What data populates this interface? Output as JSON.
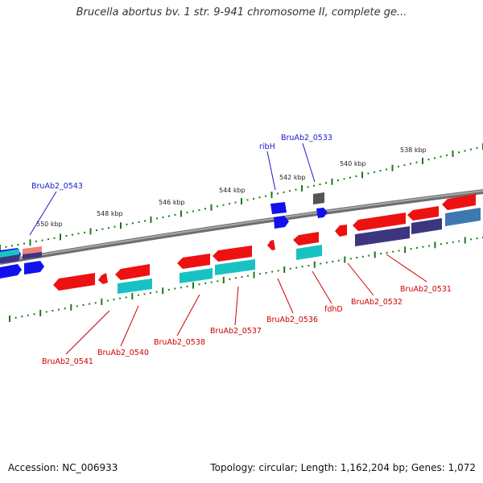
{
  "title": "Brucella abortus bv. 1 str. 9-941 chromosome II, complete ge...",
  "footer": {
    "accession": "Accession: NC_006933",
    "topology": "Topology: circular; Length: 1,162,204 bp; Genes: 1,072"
  },
  "ruler": {
    "labels": [
      "550 kbp",
      "548 kbp",
      "546 kbp",
      "544 kbp",
      "542 kbp",
      "540 kbp",
      "538 kbp"
    ]
  },
  "genes": {
    "forward": [
      "BruAb2_0543",
      "ribH",
      "BruAb2_0533"
    ],
    "reverse": [
      "BruAb2_0541",
      "BruAb2_0540",
      "BruAb2_0538",
      "BruAb2_0537",
      "BruAb2_0536",
      "fdhD",
      "BruAb2_0532",
      "BruAb2_0531"
    ]
  },
  "colors": {
    "forward_label": "#1a1acc",
    "reverse_label": "#cc0000",
    "gene_red": "#ee1111",
    "gene_blue": "#1111ee",
    "gene_cyan": "#19c2c2",
    "gene_purple": "#3d3580",
    "gene_steel": "#3e78b0",
    "gene_pink": "#f08080",
    "gene_gray": "#555555",
    "ruler_tick": "#1a7a1a",
    "backbone": "#888888"
  }
}
